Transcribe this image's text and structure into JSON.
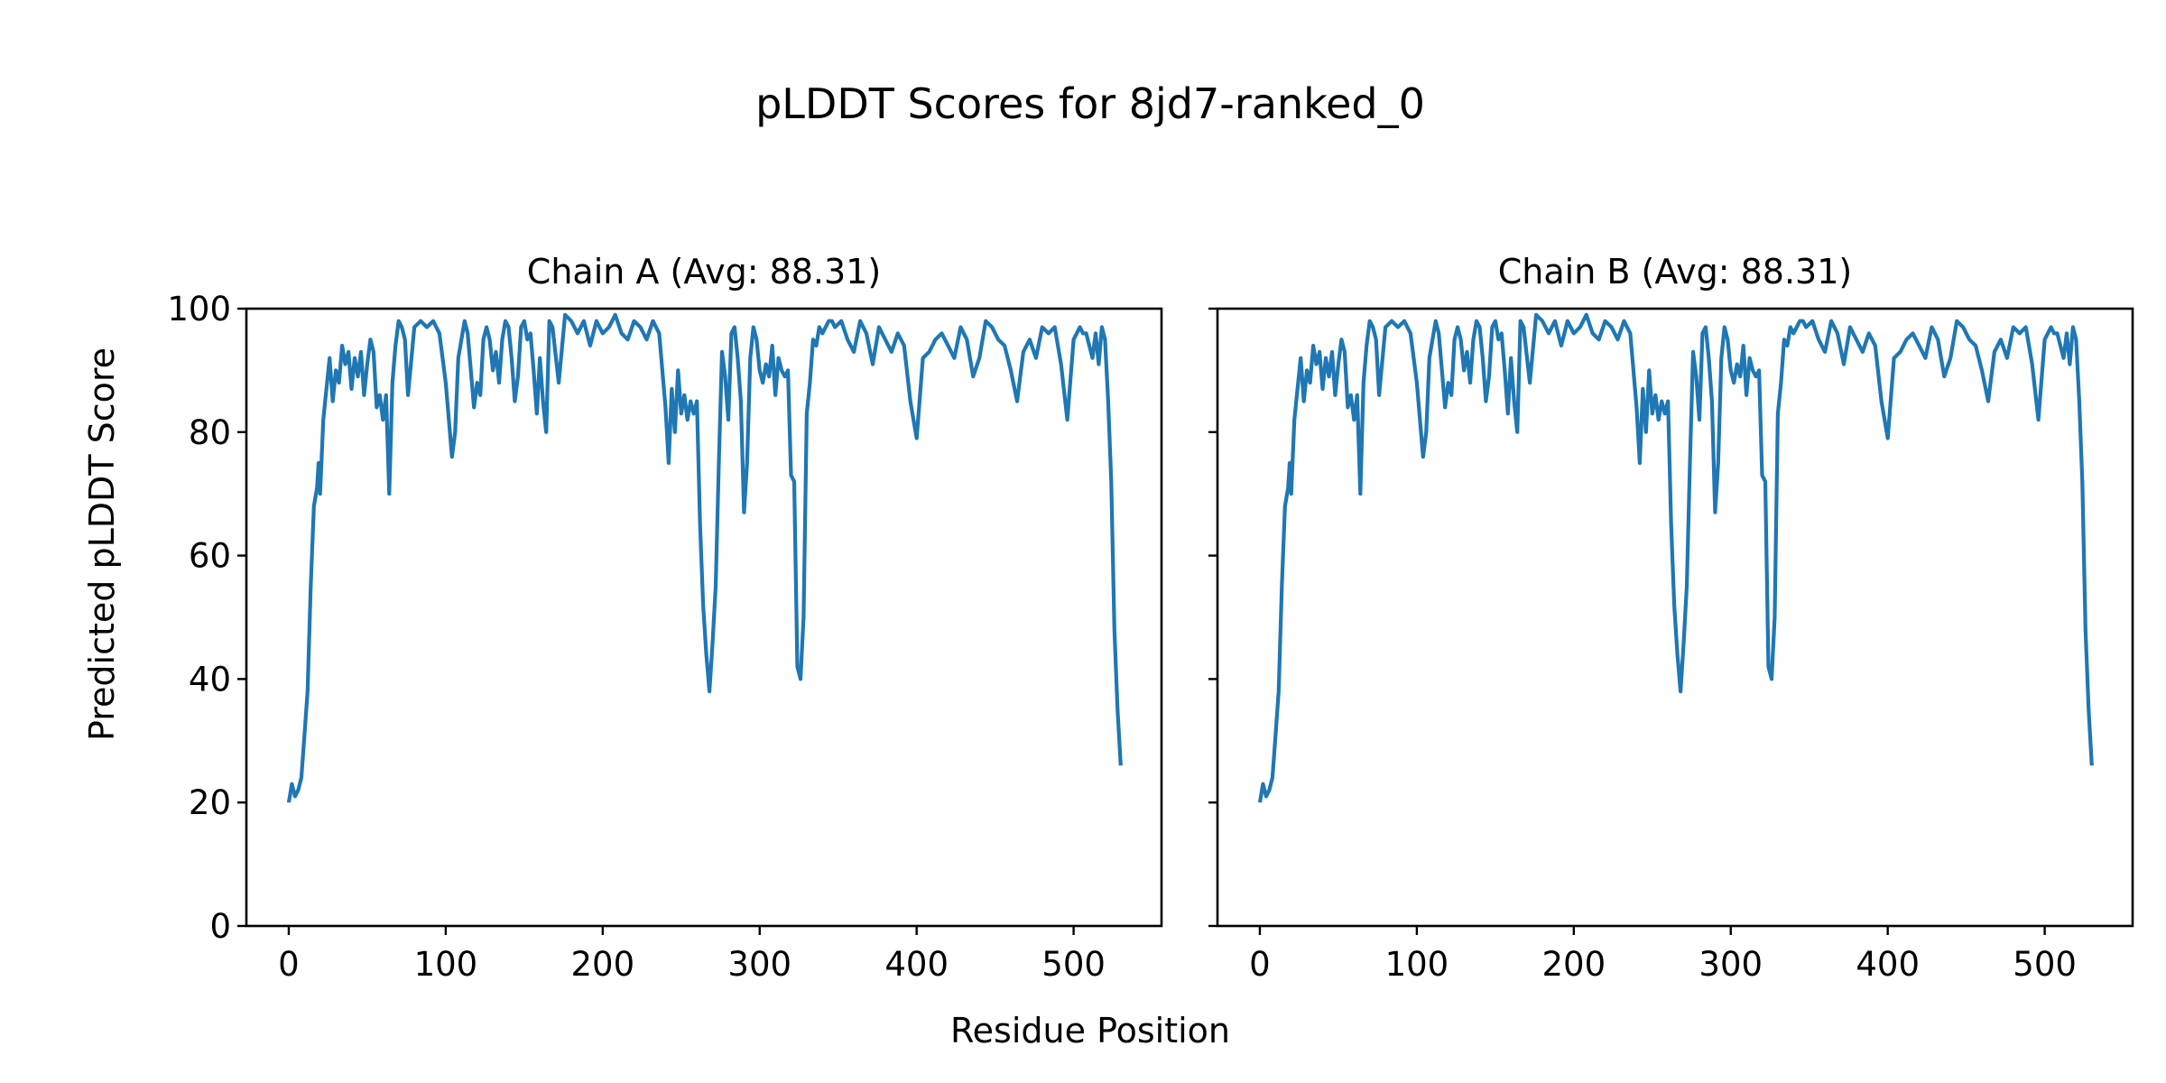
{
  "figure": {
    "title": "pLDDT Scores for 8jd7-ranked_0",
    "xlabel": "Residue Position",
    "ylabel": "Predicted pLDDT Score"
  },
  "colors": {
    "series": "#1f77b4",
    "axis": "#000000",
    "background": "#ffffff"
  },
  "chart_data": [
    {
      "type": "line",
      "title": "Chain A (Avg: 88.31)",
      "xlabel": "Residue Position",
      "ylabel": "Predicted pLDDT Score",
      "xlim": [
        -27,
        556
      ],
      "ylim": [
        0,
        100
      ],
      "xticks": [
        0,
        100,
        200,
        300,
        400,
        500
      ],
      "yticks": [
        0,
        20,
        40,
        60,
        80,
        100
      ],
      "grid": false,
      "series": [
        {
          "name": "pLDDT",
          "x": [
            0,
            2,
            4,
            6,
            8,
            10,
            12,
            14,
            16,
            18,
            19,
            20,
            22,
            24,
            26,
            28,
            30,
            32,
            34,
            36,
            38,
            40,
            42,
            44,
            46,
            48,
            50,
            52,
            54,
            56,
            58,
            60,
            62,
            64,
            66,
            68,
            70,
            72,
            74,
            76,
            80,
            84,
            88,
            92,
            96,
            100,
            104,
            106,
            108,
            110,
            112,
            114,
            116,
            118,
            120,
            122,
            124,
            126,
            128,
            130,
            132,
            134,
            136,
            138,
            140,
            142,
            144,
            146,
            148,
            150,
            152,
            154,
            156,
            158,
            160,
            162,
            164,
            166,
            168,
            172,
            176,
            180,
            184,
            188,
            192,
            196,
            200,
            204,
            208,
            212,
            216,
            220,
            224,
            228,
            232,
            236,
            240,
            242,
            244,
            246,
            248,
            250,
            252,
            254,
            256,
            258,
            260,
            262,
            264,
            266,
            268,
            270,
            272,
            274,
            276,
            278,
            280,
            282,
            284,
            286,
            288,
            290,
            292,
            294,
            296,
            298,
            300,
            302,
            304,
            306,
            308,
            310,
            312,
            314,
            316,
            318,
            320,
            322,
            324,
            326,
            328,
            330,
            332,
            334,
            336,
            338,
            340,
            342,
            344,
            346,
            348,
            352,
            356,
            360,
            364,
            368,
            372,
            376,
            380,
            384,
            388,
            392,
            396,
            400,
            404,
            408,
            412,
            416,
            420,
            424,
            428,
            432,
            436,
            440,
            444,
            448,
            452,
            456,
            460,
            464,
            468,
            472,
            476,
            480,
            484,
            488,
            492,
            496,
            500,
            504,
            506,
            508,
            510,
            512,
            514,
            516,
            518,
            520,
            522,
            524,
            526,
            528,
            530
          ],
          "y": [
            20,
            23,
            21,
            22,
            24,
            31,
            38,
            55,
            68,
            71,
            75,
            70,
            82,
            87,
            92,
            85,
            90,
            88,
            94,
            91,
            93,
            87,
            92,
            89,
            93,
            86,
            91,
            95,
            93,
            84,
            86,
            82,
            86,
            70,
            88,
            94,
            98,
            97,
            95,
            86,
            97,
            98,
            97,
            98,
            96,
            88,
            76,
            80,
            92,
            95,
            98,
            96,
            90,
            84,
            88,
            86,
            95,
            97,
            95,
            90,
            93,
            88,
            95,
            98,
            97,
            92,
            85,
            89,
            97,
            98,
            95,
            96,
            90,
            83,
            92,
            85,
            80,
            98,
            97,
            88,
            99,
            98,
            96,
            98,
            94,
            98,
            96,
            97,
            99,
            96,
            95,
            98,
            97,
            95,
            98,
            96,
            84,
            75,
            87,
            80,
            90,
            83,
            86,
            82,
            85,
            83,
            85,
            65,
            52,
            44,
            38,
            46,
            55,
            75,
            93,
            89,
            82,
            96,
            97,
            92,
            85,
            67,
            75,
            92,
            97,
            95,
            90,
            88,
            91,
            89,
            94,
            86,
            92,
            90,
            89,
            90,
            73,
            72,
            42,
            40,
            50,
            83,
            88,
            95,
            94,
            97,
            96,
            97,
            98,
            98,
            97,
            98,
            95,
            93,
            98,
            96,
            91,
            97,
            95,
            93,
            96,
            94,
            85,
            79,
            92,
            93,
            95,
            96,
            94,
            92,
            97,
            95,
            89,
            92,
            98,
            97,
            95,
            94,
            90,
            85,
            93,
            95,
            92,
            97,
            96,
            97,
            91,
            82,
            95,
            97,
            96,
            96,
            94,
            92,
            96,
            91,
            97,
            95,
            85,
            72,
            48,
            35,
            26
          ]
        }
      ]
    },
    {
      "type": "line",
      "title": "Chain B (Avg: 88.31)",
      "xlabel": "Residue Position",
      "ylabel": "",
      "xlim": [
        -27,
        556
      ],
      "ylim": [
        0,
        100
      ],
      "xticks": [
        0,
        100,
        200,
        300,
        400,
        500
      ],
      "yticks": [
        0,
        20,
        40,
        60,
        80,
        100
      ],
      "grid": false,
      "series": [
        {
          "name": "pLDDT",
          "x": [
            0,
            2,
            4,
            6,
            8,
            10,
            12,
            14,
            16,
            18,
            19,
            20,
            22,
            24,
            26,
            28,
            30,
            32,
            34,
            36,
            38,
            40,
            42,
            44,
            46,
            48,
            50,
            52,
            54,
            56,
            58,
            60,
            62,
            64,
            66,
            68,
            70,
            72,
            74,
            76,
            80,
            84,
            88,
            92,
            96,
            100,
            104,
            106,
            108,
            110,
            112,
            114,
            116,
            118,
            120,
            122,
            124,
            126,
            128,
            130,
            132,
            134,
            136,
            138,
            140,
            142,
            144,
            146,
            148,
            150,
            152,
            154,
            156,
            158,
            160,
            162,
            164,
            166,
            168,
            172,
            176,
            180,
            184,
            188,
            192,
            196,
            200,
            204,
            208,
            212,
            216,
            220,
            224,
            228,
            232,
            236,
            240,
            242,
            244,
            246,
            248,
            250,
            252,
            254,
            256,
            258,
            260,
            262,
            264,
            266,
            268,
            270,
            272,
            274,
            276,
            278,
            280,
            282,
            284,
            286,
            288,
            290,
            292,
            294,
            296,
            298,
            300,
            302,
            304,
            306,
            308,
            310,
            312,
            314,
            316,
            318,
            320,
            322,
            324,
            326,
            328,
            330,
            332,
            334,
            336,
            338,
            340,
            342,
            344,
            346,
            348,
            352,
            356,
            360,
            364,
            368,
            372,
            376,
            380,
            384,
            388,
            392,
            396,
            400,
            404,
            408,
            412,
            416,
            420,
            424,
            428,
            432,
            436,
            440,
            444,
            448,
            452,
            456,
            460,
            464,
            468,
            472,
            476,
            480,
            484,
            488,
            492,
            496,
            500,
            504,
            506,
            508,
            510,
            512,
            514,
            516,
            518,
            520,
            522,
            524,
            526,
            528,
            530
          ],
          "y": [
            20,
            23,
            21,
            22,
            24,
            31,
            38,
            55,
            68,
            71,
            75,
            70,
            82,
            87,
            92,
            85,
            90,
            88,
            94,
            91,
            93,
            87,
            92,
            89,
            93,
            86,
            91,
            95,
            93,
            84,
            86,
            82,
            86,
            70,
            88,
            94,
            98,
            97,
            95,
            86,
            97,
            98,
            97,
            98,
            96,
            88,
            76,
            80,
            92,
            95,
            98,
            96,
            90,
            84,
            88,
            86,
            95,
            97,
            95,
            90,
            93,
            88,
            95,
            98,
            97,
            92,
            85,
            89,
            97,
            98,
            95,
            96,
            90,
            83,
            92,
            85,
            80,
            98,
            97,
            88,
            99,
            98,
            96,
            98,
            94,
            98,
            96,
            97,
            99,
            96,
            95,
            98,
            97,
            95,
            98,
            96,
            84,
            75,
            87,
            80,
            90,
            83,
            86,
            82,
            85,
            83,
            85,
            65,
            52,
            44,
            38,
            46,
            55,
            75,
            93,
            89,
            82,
            96,
            97,
            92,
            85,
            67,
            75,
            92,
            97,
            95,
            90,
            88,
            91,
            89,
            94,
            86,
            92,
            90,
            89,
            90,
            73,
            72,
            42,
            40,
            50,
            83,
            88,
            95,
            94,
            97,
            96,
            97,
            98,
            98,
            97,
            98,
            95,
            93,
            98,
            96,
            91,
            97,
            95,
            93,
            96,
            94,
            85,
            79,
            92,
            93,
            95,
            96,
            94,
            92,
            97,
            95,
            89,
            92,
            98,
            97,
            95,
            94,
            90,
            85,
            93,
            95,
            92,
            97,
            96,
            97,
            91,
            82,
            95,
            97,
            96,
            96,
            94,
            92,
            96,
            91,
            97,
            95,
            85,
            72,
            48,
            35,
            26
          ]
        }
      ]
    }
  ]
}
